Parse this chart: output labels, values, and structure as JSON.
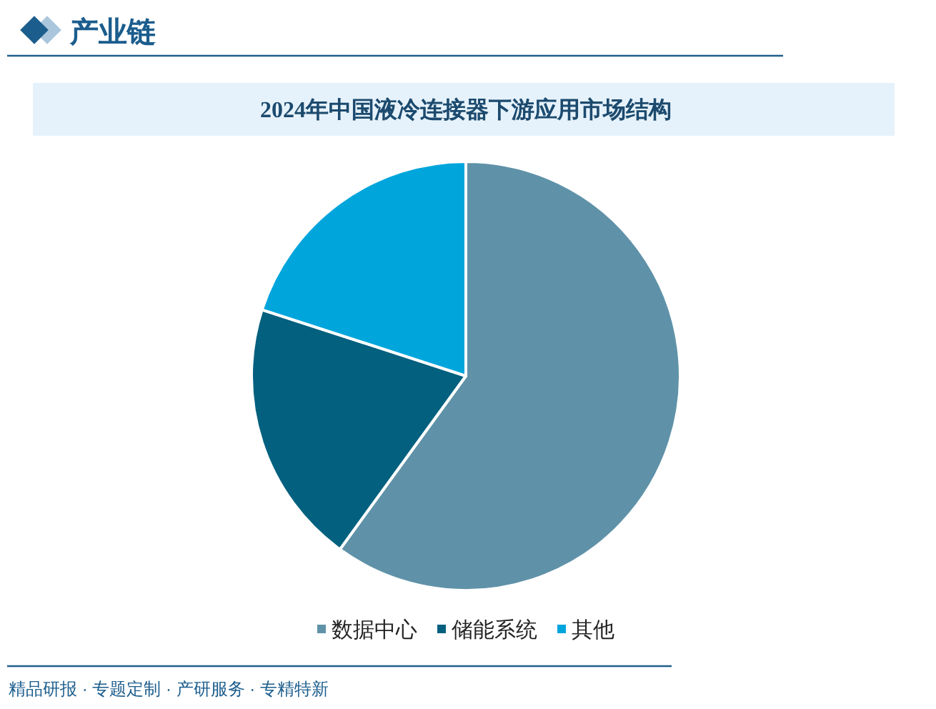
{
  "chart_data": {
    "type": "pie",
    "title": "2024年中国液冷连接器下游应用市场结构",
    "categories": [
      "数据中心",
      "储能系统",
      "其他"
    ],
    "values": [
      60,
      20,
      20
    ],
    "colors": [
      "#5f92a8",
      "#03607f",
      "#00a5dc"
    ],
    "legend": "bottom",
    "annotations": [
      "产业链",
      "精品研报 · 专题定制 · 产研服务 · 专精特新"
    ]
  }
}
